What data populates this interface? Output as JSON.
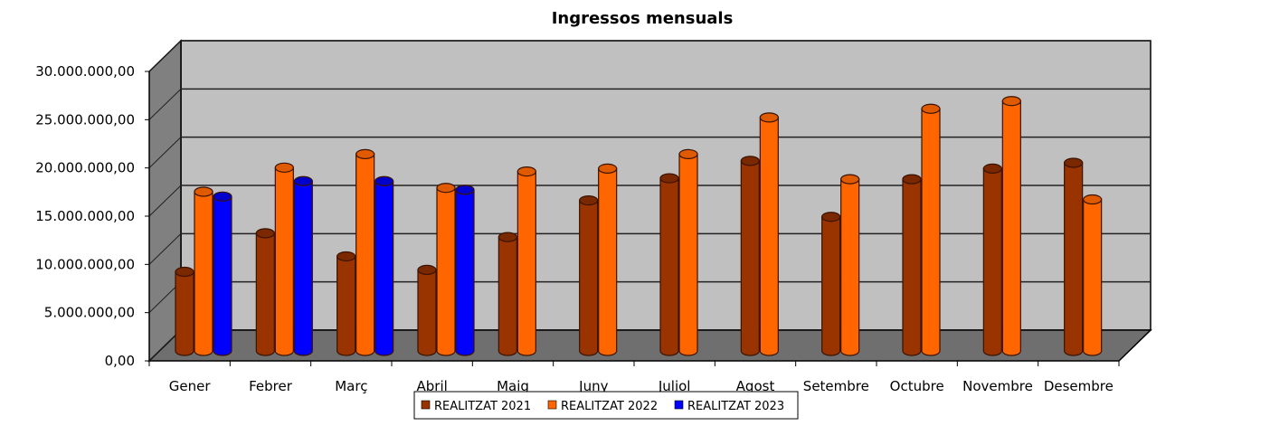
{
  "chart_data": {
    "type": "bar",
    "title": "Ingressos mensuals",
    "xlabel": "",
    "ylabel": "",
    "ylim": [
      0,
      30000000
    ],
    "yticks": [
      "0,00",
      "5.000.000,00",
      "10.000.000,00",
      "15.000.000,00",
      "20.000.000,00",
      "25.000.000,00",
      "30.000.000,00"
    ],
    "categories": [
      "Gener",
      "Febrer",
      "Març",
      "Abril",
      "Maig",
      "Juny",
      "Juliol",
      "Agost",
      "Setembre",
      "Octubre",
      "Novembre",
      "Desembre"
    ],
    "series": [
      {
        "name": "REALITZAT 2021",
        "color": "#993300",
        "top": "#7a2800",
        "values": [
          8200000,
          12200000,
          9800000,
          8400000,
          11800000,
          15600000,
          17900000,
          19700000,
          13900000,
          17800000,
          18900000,
          19500000
        ]
      },
      {
        "name": "REALITZAT 2022",
        "color": "#ff6600",
        "top": "#e05a00",
        "values": [
          16500000,
          19000000,
          20400000,
          16900000,
          18600000,
          18900000,
          20400000,
          24200000,
          17800000,
          25100000,
          25900000,
          15700000
        ]
      },
      {
        "name": "REALITZAT 2023",
        "color": "#0000ff",
        "top": "#0000cc",
        "values": [
          16000000,
          17600000,
          17600000,
          16700000,
          null,
          null,
          null,
          null,
          null,
          null,
          null,
          null
        ]
      }
    ],
    "grid": true,
    "legend_position": "bottom"
  }
}
